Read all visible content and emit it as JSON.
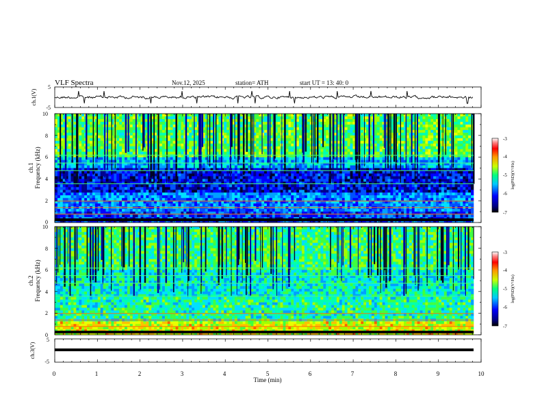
{
  "header": {
    "title": "VLF  Spectra",
    "date": "Nov.12, 2025",
    "station": "station= ATH",
    "start": "start  UT  =    13: 40: 0"
  },
  "chart_data": [
    {
      "type": "line",
      "panel": "ch1-waveform",
      "ylabel": "ch.1(V)",
      "ylim": [
        -5,
        5
      ],
      "ytick_labels": [
        "5",
        "-5"
      ]
    },
    {
      "type": "heatmap",
      "panel": "ch1-spectrogram",
      "ylabel": "ch.1",
      "ylabel2": "Frequency (kHz)",
      "ylim": [
        0,
        10
      ],
      "ytick_labels": [
        "10",
        "8",
        "6",
        "4",
        "2",
        "0"
      ],
      "colorbar": {
        "label": "log(PSD)(V²/Hz)",
        "range": [
          -7,
          -3
        ],
        "tick_labels": [
          "-3",
          "-4",
          "-5",
          "-6",
          "-7"
        ]
      }
    },
    {
      "type": "heatmap",
      "panel": "ch2-spectrogram",
      "ylabel": "ch.2",
      "ylabel2": "Frequency (kHz)",
      "ylim": [
        0,
        10
      ],
      "ytick_labels": [
        "10",
        "8",
        "6",
        "4",
        "2",
        "0"
      ],
      "colorbar": {
        "label": "log(PSD)(V²/Hz)",
        "range": [
          -7,
          -3
        ],
        "tick_labels": [
          "-3",
          "-4",
          "-5",
          "-6",
          "-7"
        ]
      }
    },
    {
      "type": "line",
      "panel": "ch3-waveform",
      "ylabel": "ch.3(V)",
      "ylim": [
        -5,
        5
      ],
      "ytick_labels": [
        "5",
        "-5"
      ],
      "trace_level": 0
    }
  ],
  "xaxis": {
    "label": "Time  (min)",
    "range": [
      0,
      10
    ],
    "tick_labels": [
      "0",
      "1",
      "2",
      "3",
      "4",
      "5",
      "6",
      "7",
      "8",
      "9",
      "10"
    ]
  }
}
